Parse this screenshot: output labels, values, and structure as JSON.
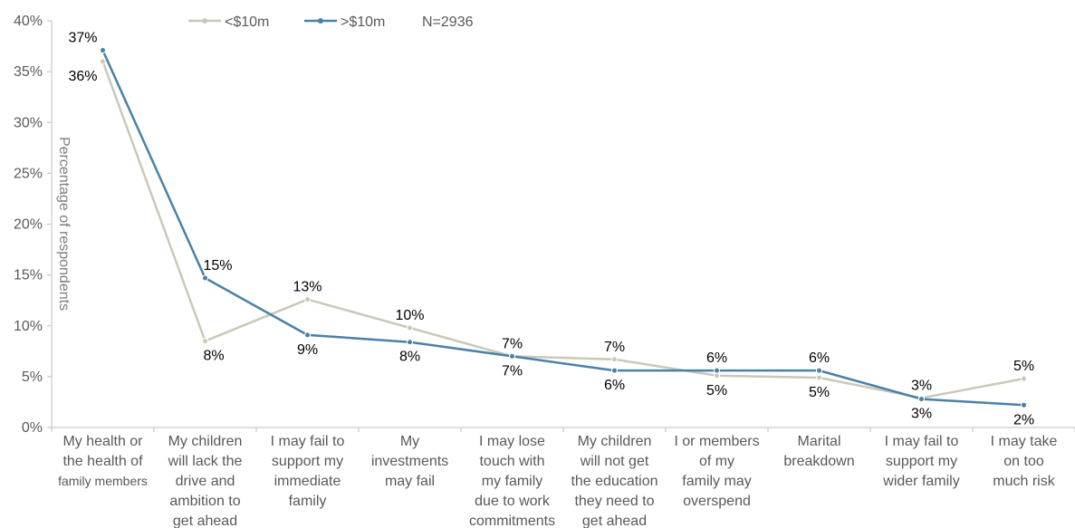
{
  "chart_data": {
    "type": "line",
    "ylabel": "Percentage of respondents",
    "ylim": [
      0,
      40
    ],
    "y_ticks": [
      "0%",
      "5%",
      "10%",
      "15%",
      "20%",
      "25%",
      "30%",
      "35%",
      "40%"
    ],
    "categories": [
      [
        "My health or",
        "the health of",
        "family members"
      ],
      [
        "My children",
        "will lack the",
        "drive and",
        "ambition to",
        "get ahead"
      ],
      [
        "I may fail to",
        "support my",
        "immediate",
        "family"
      ],
      [
        "My",
        "investments",
        "may fail"
      ],
      [
        "I may lose",
        "touch with",
        "my family",
        "due to work",
        "commitments"
      ],
      [
        "My children",
        "will not get",
        "the education",
        "they need to",
        "get ahead"
      ],
      [
        "I or members",
        "of my",
        "family may",
        "overspend"
      ],
      [
        "Marital",
        "breakdown"
      ],
      [
        "I may fail to",
        "support my",
        "wider family"
      ],
      [
        "I may take",
        "on too",
        "much risk"
      ]
    ],
    "series": [
      {
        "name": "<$10m",
        "color": "#c9c9b8",
        "values": [
          36,
          8.5,
          12.6,
          9.8,
          7,
          6.7,
          5.1,
          4.9,
          2.9,
          4.8
        ],
        "labels": [
          "36%",
          "8%",
          "13%",
          "10%",
          "7%",
          "7%",
          "5%",
          "5%",
          "3%",
          "5%"
        ]
      },
      {
        "name": ">$10m",
        "color": "#4a81a8",
        "values": [
          37.1,
          14.7,
          9.1,
          8.4,
          7,
          5.6,
          5.6,
          5.6,
          2.8,
          2.2
        ],
        "labels": [
          "37%",
          "15%",
          "9%",
          "8%",
          "7%",
          "6%",
          "6%",
          "6%",
          "3%",
          "2%"
        ]
      }
    ],
    "note": "N=2936",
    "legend_position": "top",
    "grid": false
  }
}
